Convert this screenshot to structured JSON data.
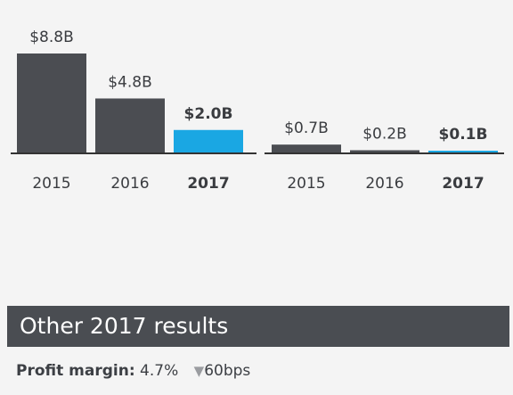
{
  "chart_data": [
    {
      "type": "bar",
      "categories": [
        "2015",
        "2016",
        "2017"
      ],
      "values": [
        8.8,
        4.8,
        2.0
      ],
      "value_labels": [
        "$8.8B",
        "$4.8B",
        "$2.0B"
      ],
      "highlight_index": 2,
      "title": "",
      "xlabel": "",
      "ylabel": ""
    },
    {
      "type": "bar",
      "categories": [
        "2015",
        "2016",
        "2017"
      ],
      "values": [
        0.7,
        0.2,
        0.1
      ],
      "value_labels": [
        "$0.7B",
        "$0.2B",
        "$0.1B"
      ],
      "highlight_index": 2,
      "title": "",
      "xlabel": "",
      "ylabel": ""
    }
  ],
  "colors": {
    "bar": "#4b4d52",
    "highlight": "#1aa7e3",
    "axis": "#333333"
  },
  "section_title": "Other 2017 results",
  "profit_margin": {
    "label": "Profit margin:",
    "value": "4.7%",
    "change_icon": "triangle-down-icon",
    "change": "60bps"
  }
}
